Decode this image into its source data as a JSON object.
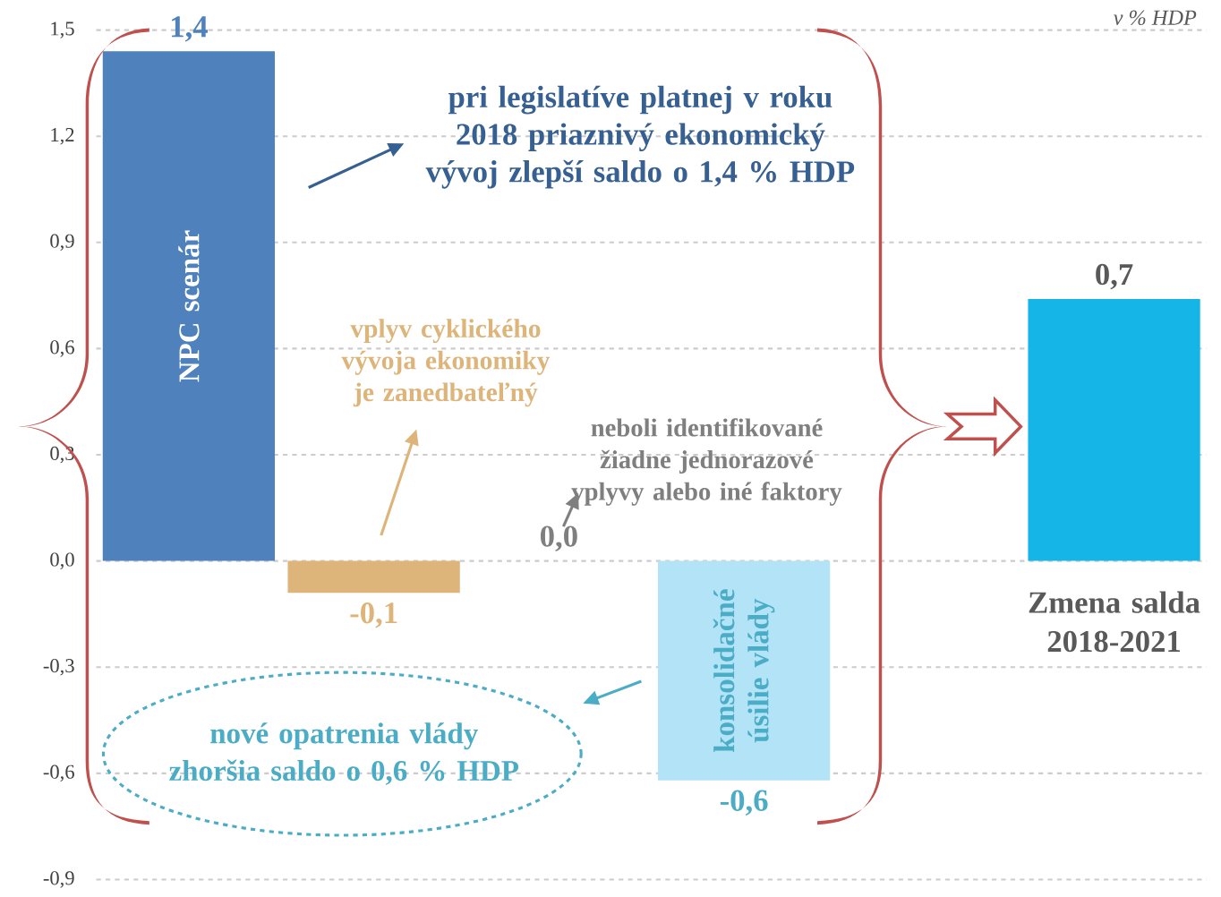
{
  "chart_data": {
    "type": "bar",
    "categories": [
      "NPC scenár",
      null,
      null,
      "konsolidačné úsilie vlády",
      null,
      "Zmena salda 2018-2021"
    ],
    "values": [
      1.44,
      -0.09,
      0.0,
      -0.62,
      null,
      0.74
    ],
    "value_labels": [
      "1,4",
      "-0,1",
      "0,0",
      "-0,6",
      null,
      "0,7"
    ],
    "colors": [
      "#4f81bd",
      "#ddb479",
      "#7f7f7f",
      "#b3e3f6",
      "#ffffff",
      "#16b5e8"
    ],
    "ylim": [
      -0.9,
      1.5
    ],
    "yticks": [
      {
        "value": -0.9,
        "label": "-0,9"
      },
      {
        "value": -0.6,
        "label": "-0,6"
      },
      {
        "value": -0.3,
        "label": "-0,3"
      },
      {
        "value": 0,
        "label": "0,0"
      },
      {
        "value": 0.3,
        "label": "0,3"
      },
      {
        "value": 0.6,
        "label": "0,6"
      },
      {
        "value": 0.9,
        "label": "0,9"
      },
      {
        "value": 1.2,
        "label": "1,2"
      },
      {
        "value": 1.5,
        "label": "1,5"
      }
    ],
    "grid": "y",
    "annotations": [
      "v % HDP",
      "pri legislatíve platnej v roku 2018 priaznivý ekonomický vývoj zlepší saldo o 1,4 % HDP",
      "vplyv cyklického vývoja ekonomiky je zanedbateľný",
      "neboli identifikované žiadne jednorazové vplyvy alebo iné faktory",
      "nové opatrenia vlády zhoršia saldo o 0,6 % HDP"
    ]
  }
}
